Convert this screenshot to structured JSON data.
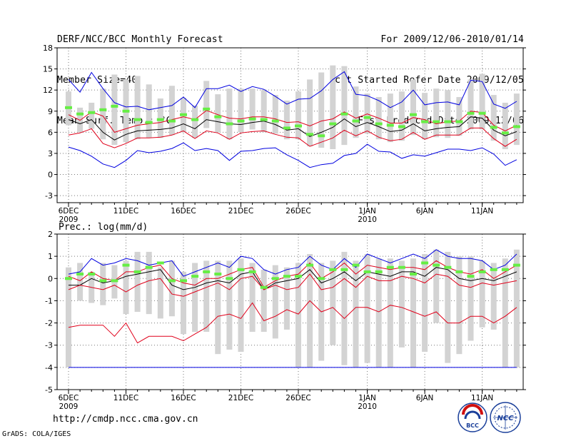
{
  "header": {
    "left": [
      "DERF/NCC/BCC Monthly Forecast",
      "Member Size=40",
      "Mean Surf. Temp.: °C"
    ],
    "right": [
      "For 2009/12/06-2010/01/14",
      "Fcst Started Refer Date 2009/12/05",
      "Fcst Produced Date 2009/12/06"
    ]
  },
  "footer": {
    "url": "http://cmdp.ncc.cma.gov.cn",
    "credit": "GrADS: COLA/IGES",
    "logo_bcc": "BCC",
    "logo_ncc": "NCC"
  },
  "colors": {
    "box": "#d3d3d3",
    "mean": "#000000",
    "inner_band": "#e0001a",
    "outer_band": "#0000e0",
    "obs": "#66ee44",
    "grid": "#777777"
  },
  "chart_data": [
    {
      "type": "line",
      "title": "Mean Surf. Temp.: °C",
      "ylim": [
        -4,
        18
      ],
      "yticks": [
        -3,
        0,
        3,
        6,
        9,
        12,
        15,
        18
      ],
      "day_range": [
        0,
        39
      ],
      "xticks": [
        {
          "day": 0,
          "label": "6DEC",
          "sub": "2009"
        },
        {
          "day": 5,
          "label": "11DEC",
          "sub": ""
        },
        {
          "day": 10,
          "label": "16DEC",
          "sub": ""
        },
        {
          "day": 15,
          "label": "21DEC",
          "sub": ""
        },
        {
          "day": 20,
          "label": "26DEC",
          "sub": ""
        },
        {
          "day": 26,
          "label": "1JAN",
          "sub": "2010"
        },
        {
          "day": 31,
          "label": "6JAN",
          "sub": ""
        },
        {
          "day": 36,
          "label": "11JAN",
          "sub": ""
        }
      ],
      "series": [
        {
          "name": "max",
          "color": "#0000e0",
          "values": [
            13.5,
            11.7,
            14.5,
            12.2,
            10.2,
            9.6,
            9.7,
            9.2,
            9.5,
            9.8,
            11.0,
            9.5,
            12.2,
            12.2,
            12.7,
            11.8,
            12.5,
            12.1,
            11.1,
            10.0,
            10.7,
            10.8,
            11.9,
            13.5,
            14.6,
            11.4,
            11.2,
            10.5,
            9.5,
            10.3,
            12.0,
            9.9,
            10.2,
            10.3,
            9.9,
            13.4,
            13.2,
            10.0,
            9.4,
            10.4
          ]
        },
        {
          "name": "upper",
          "color": "#e0001a",
          "values": [
            8.5,
            7.7,
            8.9,
            8.3,
            6.0,
            6.5,
            7.0,
            7.2,
            7.4,
            7.8,
            8.2,
            7.8,
            9.1,
            8.5,
            8.0,
            7.9,
            8.2,
            8.2,
            7.9,
            7.4,
            7.5,
            6.9,
            7.6,
            7.9,
            8.9,
            8.0,
            8.6,
            8.0,
            7.3,
            7.3,
            8.1,
            7.8,
            7.2,
            7.5,
            7.6,
            9.0,
            8.8,
            7.0,
            6.2,
            7.0
          ]
        },
        {
          "name": "mean",
          "color": "#000000",
          "values": [
            7.8,
            7.2,
            7.8,
            6.0,
            4.9,
            5.7,
            6.2,
            6.3,
            6.4,
            6.6,
            7.2,
            6.5,
            7.8,
            7.5,
            7.2,
            7.1,
            7.4,
            7.6,
            7.1,
            6.3,
            6.5,
            5.4,
            6.0,
            6.7,
            7.9,
            6.8,
            7.4,
            6.8,
            6.1,
            6.3,
            7.2,
            6.2,
            6.5,
            6.7,
            6.8,
            8.2,
            8.0,
            6.3,
            5.5,
            6.1
          ]
        },
        {
          "name": "lower",
          "color": "#e0001a",
          "values": [
            5.6,
            5.9,
            6.5,
            4.4,
            3.8,
            4.4,
            5.2,
            5.2,
            5.3,
            5.6,
            6.2,
            5.1,
            6.2,
            5.9,
            5.0,
            5.9,
            6.1,
            6.2,
            5.7,
            5.3,
            5.2,
            4.0,
            4.6,
            5.2,
            6.3,
            5.5,
            6.2,
            5.3,
            4.8,
            5.0,
            6.0,
            5.0,
            5.6,
            5.6,
            5.6,
            6.6,
            6.6,
            5.1,
            4.0,
            5.0
          ]
        },
        {
          "name": "min",
          "color": "#0000e0",
          "values": [
            3.9,
            3.4,
            2.6,
            1.5,
            1.0,
            2.0,
            3.4,
            3.1,
            3.3,
            3.7,
            4.5,
            3.4,
            3.7,
            3.4,
            2.0,
            3.3,
            3.4,
            3.7,
            3.8,
            2.8,
            2.0,
            1.0,
            1.4,
            1.6,
            2.7,
            3.0,
            4.3,
            3.3,
            3.2,
            2.3,
            2.8,
            2.6,
            3.1,
            3.6,
            3.6,
            3.4,
            3.8,
            2.9,
            1.3,
            2.1
          ]
        }
      ],
      "boxes": {
        "name": "ensemble spread",
        "low": [
          7.0,
          6.0,
          6.5,
          5.0,
          4.2,
          4.6,
          5.0,
          5.2,
          5.2,
          5.6,
          6.0,
          5.2,
          6.6,
          6.0,
          5.0,
          6.0,
          6.4,
          6.0,
          5.8,
          5.0,
          5.0,
          4.0,
          3.8,
          3.6,
          4.2,
          5.2,
          5.8,
          5.0,
          4.6,
          4.8,
          5.6,
          5.0,
          5.3,
          5.2,
          5.5,
          6.4,
          6.4,
          4.8,
          3.6,
          4.2
        ],
        "high": [
          11.8,
          9.5,
          10.2,
          12.2,
          14.2,
          13.5,
          14.0,
          12.8,
          10.8,
          12.6,
          10.9,
          9.8,
          13.3,
          11.4,
          12.2,
          12.2,
          12.2,
          12.0,
          11.3,
          10.5,
          11.8,
          13.5,
          14.5,
          15.5,
          15.4,
          12.5,
          11.5,
          11.0,
          11.5,
          11.8,
          13.5,
          11.6,
          12.2,
          12.0,
          11.0,
          13.5,
          14.3,
          11.3,
          10.2,
          11.5
        ]
      },
      "observed": {
        "name": "observed",
        "values": [
          9.5,
          8.6,
          8.8,
          9.2,
          9.7,
          9.0,
          7.8,
          7.4,
          7.8,
          7.6,
          8.5,
          7.8,
          9.3,
          8.2,
          7.2,
          7.6,
          7.9,
          7.8,
          7.6,
          6.6,
          6.9,
          5.7,
          5.5,
          7.2,
          8.6,
          7.6,
          8.1,
          7.2,
          7.0,
          6.8,
          8.5,
          7.5,
          7.5,
          7.5,
          7.5,
          8.7,
          8.7,
          6.7,
          5.9,
          6.8
        ]
      }
    },
    {
      "type": "line",
      "title": "Prec.: log(mm/d)",
      "ylim": [
        -5,
        2
      ],
      "yticks": [
        -5,
        -4,
        -3,
        -2,
        -1,
        0,
        1,
        2
      ],
      "day_range": [
        0,
        39
      ],
      "xticks": [
        {
          "day": 0,
          "label": "6DEC",
          "sub": "2009"
        },
        {
          "day": 5,
          "label": "11DEC",
          "sub": ""
        },
        {
          "day": 10,
          "label": "16DEC",
          "sub": ""
        },
        {
          "day": 15,
          "label": "21DEC",
          "sub": ""
        },
        {
          "day": 20,
          "label": "26DEC",
          "sub": ""
        },
        {
          "day": 26,
          "label": "1JAN",
          "sub": "2010"
        },
        {
          "day": 31,
          "label": "6JAN",
          "sub": ""
        },
        {
          "day": 36,
          "label": "11JAN",
          "sub": ""
        }
      ],
      "series": [
        {
          "name": "max",
          "color": "#0000e0",
          "values": [
            0.2,
            0.3,
            0.9,
            0.6,
            0.7,
            0.9,
            0.8,
            0.6,
            0.7,
            0.8,
            0.1,
            0.3,
            0.5,
            0.7,
            0.5,
            1.0,
            0.9,
            0.4,
            0.2,
            0.4,
            0.5,
            1.0,
            0.6,
            0.4,
            0.9,
            0.5,
            1.1,
            0.9,
            0.7,
            0.9,
            1.1,
            0.9,
            1.3,
            1.0,
            0.9,
            0.9,
            0.8,
            0.4,
            0.6,
            1.1
          ]
        },
        {
          "name": "upper",
          "color": "#e0001a",
          "values": [
            0.1,
            -0.1,
            0.3,
            0.0,
            -0.1,
            0.3,
            0.3,
            0.5,
            0.6,
            0.0,
            -0.2,
            -0.3,
            0.0,
            0.0,
            0.2,
            0.4,
            0.5,
            -0.4,
            -0.1,
            0.1,
            0.2,
            0.7,
            0.0,
            0.3,
            0.7,
            0.2,
            0.6,
            0.5,
            0.4,
            0.5,
            0.5,
            0.4,
            0.8,
            0.5,
            0.3,
            0.2,
            0.4,
            0.0,
            0.3,
            0.6
          ]
        },
        {
          "name": "mean",
          "color": "#000000",
          "values": [
            -0.3,
            -0.3,
            0.0,
            -0.2,
            -0.1,
            0.1,
            0.2,
            0.3,
            0.4,
            -0.3,
            -0.5,
            -0.4,
            -0.2,
            -0.1,
            -0.2,
            0.2,
            0.3,
            -0.5,
            -0.2,
            -0.1,
            0.0,
            0.4,
            -0.2,
            0.0,
            0.3,
            -0.1,
            0.3,
            0.2,
            0.1,
            0.3,
            0.3,
            0.1,
            0.5,
            0.4,
            0.0,
            -0.1,
            0.0,
            -0.1,
            0.1,
            0.3
          ]
        },
        {
          "name": "lower",
          "color": "#e0001a",
          "values": [
            -0.5,
            -0.3,
            -0.4,
            -0.5,
            -0.3,
            -0.6,
            -0.3,
            -0.1,
            0.0,
            -0.7,
            -0.8,
            -0.6,
            -0.4,
            -0.2,
            -0.5,
            0.0,
            0.1,
            -0.5,
            -0.3,
            -0.5,
            -0.4,
            0.2,
            -0.5,
            -0.4,
            0.0,
            -0.4,
            0.1,
            -0.1,
            -0.1,
            0.1,
            0.0,
            -0.2,
            0.2,
            0.1,
            -0.3,
            -0.4,
            -0.2,
            -0.3,
            -0.2,
            -0.1
          ]
        },
        {
          "name": "min",
          "color": "#e0001a",
          "values": [
            -2.2,
            -2.1,
            -2.1,
            -2.1,
            -2.6,
            -2.0,
            -2.9,
            -2.6,
            -2.6,
            -2.6,
            -2.8,
            -2.5,
            -2.2,
            -1.7,
            -1.6,
            -1.8,
            -1.1,
            -1.9,
            -1.7,
            -1.4,
            -1.6,
            -1.0,
            -1.5,
            -1.3,
            -1.8,
            -1.3,
            -1.3,
            -1.5,
            -1.2,
            -1.3,
            -1.5,
            -1.7,
            -1.5,
            -2.0,
            -2.0,
            -1.7,
            -1.7,
            -2.0,
            -1.7,
            -1.3
          ]
        }
      ],
      "boxes": {
        "name": "ensemble spread",
        "low": [
          -4.0,
          -1.0,
          -1.1,
          -1.2,
          -0.9,
          -1.6,
          -1.5,
          -1.6,
          -1.8,
          -1.7,
          -2.5,
          -2.4,
          -2.4,
          -3.4,
          -3.2,
          -3.3,
          -2.4,
          -2.4,
          -2.7,
          -2.3,
          -4.0,
          -4.0,
          -3.7,
          -3.0,
          -3.9,
          -4.0,
          -3.8,
          -4.0,
          -4.0,
          -3.1,
          -4.0,
          -3.3,
          -2.0,
          -3.8,
          -3.4,
          -2.8,
          -2.2,
          -2.3,
          -4.0,
          -4.0
        ],
        "high": [
          0.5,
          0.7,
          0.3,
          0.7,
          0.6,
          0.8,
          1.2,
          1.2,
          0.5,
          0.8,
          0.3,
          0.7,
          0.8,
          0.8,
          0.8,
          0.9,
          0.7,
          0.4,
          0.6,
          0.5,
          0.7,
          1.1,
          0.7,
          0.8,
          1.2,
          0.8,
          1.1,
          0.9,
          0.9,
          0.8,
          0.9,
          1.1,
          1.3,
          1.2,
          1.0,
          1.0,
          0.8,
          0.7,
          0.9,
          1.3
        ]
      },
      "observed": {
        "name": "observed",
        "values": [
          0.0,
          0.2,
          0.2,
          -0.1,
          -0.1,
          0.6,
          0.3,
          0.5,
          0.7,
          -0.1,
          -0.1,
          0.1,
          0.3,
          0.2,
          0.0,
          0.4,
          0.3,
          -0.4,
          0.0,
          0.1,
          0.1,
          0.6,
          0.0,
          0.4,
          0.4,
          0.6,
          0.3,
          0.3,
          0.5,
          0.5,
          0.2,
          0.7,
          0.6,
          0.5,
          0.3,
          0.1,
          0.3,
          0.4,
          0.4,
          0.6
        ]
      },
      "floor_line": {
        "value": -4,
        "color": "#0000e0"
      }
    }
  ]
}
